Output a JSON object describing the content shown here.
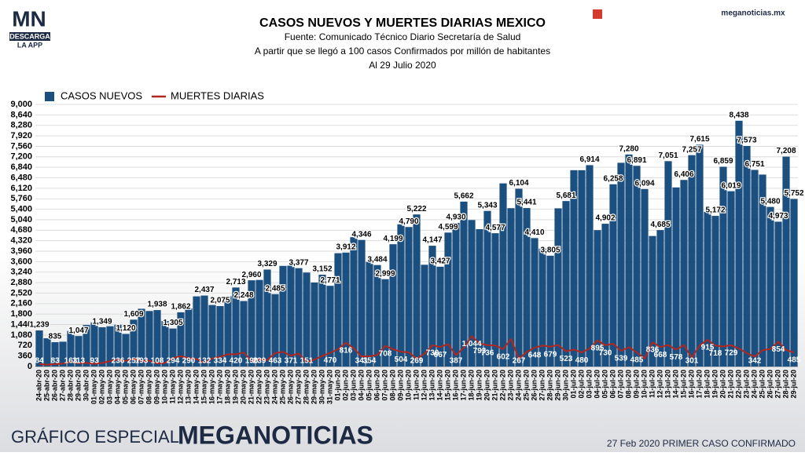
{
  "logo": {
    "mark": "MN",
    "line1": "DESCARGA",
    "line2": "LA APP"
  },
  "site": "meganoticias.mx",
  "footer": {
    "left": "GRÁFICO ESPECIAL",
    "brand": "MEGANOTICIAS",
    "right": "27 Feb 2020 PRIMER CASO CONFIRMADO"
  },
  "chart_data": {
    "type": "bar",
    "title": "CASOS NUEVOS Y MUERTES DIARIAS MEXICO",
    "subtitle": [
      "Fuente: Comunicado Técnico Diario Secretaría de Salud",
      "A partir que se llegó a 100 casos Confirmados por millón de habitantes",
      "Al 29 Julio 2020"
    ],
    "legend": "top-left",
    "grid": true,
    "ylim": [
      0,
      9000
    ],
    "yticks": [
      0,
      360,
      720,
      {
        "value": 1080,
        "label": "1,080"
      },
      {
        "value": 1440,
        "label": "1,440"
      },
      {
        "value": 1800,
        "label": "1,800"
      },
      {
        "value": 2160,
        "label": "2,160"
      },
      {
        "value": 2520,
        "label": "2,520"
      },
      {
        "value": 2880,
        "label": "2,880"
      },
      {
        "value": 3240,
        "label": "3,240"
      },
      {
        "value": 3600,
        "label": "3,600"
      },
      {
        "value": 3960,
        "label": "3,960"
      },
      {
        "value": 4320,
        "label": "4,320"
      },
      {
        "value": 4680,
        "label": "4,680"
      },
      {
        "value": 5040,
        "label": "5,040"
      },
      {
        "value": 5400,
        "label": "5,400"
      },
      {
        "value": 5760,
        "label": "5,760"
      },
      {
        "value": 6120,
        "label": "6,120"
      },
      {
        "value": 6480,
        "label": "6,480"
      },
      {
        "value": 6840,
        "label": "6,840"
      },
      {
        "value": 7200,
        "label": "7,200"
      },
      {
        "value": 7560,
        "label": "7,560"
      },
      {
        "value": 7920,
        "label": "7,920"
      },
      {
        "value": 8280,
        "label": "8,280"
      },
      {
        "value": 8640,
        "label": "8,640"
      },
      {
        "value": 9000,
        "label": "9,000"
      }
    ],
    "categories": [
      "24-abr-20",
      "25-abr-20",
      "26-abr-20",
      "27-abr-20",
      "28-abr-20",
      "29-abr-20",
      "30-abr-20",
      "01-may-20",
      "02-may-20",
      "03-may-20",
      "04-may-20",
      "05-may-20",
      "06-may-20",
      "07-may-20",
      "08-may-20",
      "09-may-20",
      "10-may-20",
      "11-may-20",
      "12-may-20",
      "13-may-20",
      "14-may-20",
      "15-may-20",
      "16-may-20",
      "17-may-20",
      "18-may-20",
      "19-may-20",
      "20-may-20",
      "21-may-20",
      "22-may-20",
      "23-may-20",
      "24-may-20",
      "25-may-20",
      "26-may-20",
      "27-may-20",
      "28-may-20",
      "29-may-20",
      "30-may-20",
      "31-may-20",
      "01-jun-20",
      "02-jun-20",
      "03-jun-20",
      "04-jun-20",
      "05-jun-20",
      "06-jun-20",
      "07-jun-20",
      "08-jun-20",
      "09-jun-20",
      "10-jun-20",
      "11-jun-20",
      "12-jun-20",
      "13-jun-20",
      "14-jun-20",
      "15-jun-20",
      "16-jun-20",
      "17-jun-20",
      "18-jun-20",
      "19-jun-20",
      "20-jun-20",
      "21-jun-20",
      "22-jun-20",
      "23-jun-20",
      "24-jun-20",
      "25-jun-20",
      "26-jun-20",
      "27-jun-20",
      "28-jun-20",
      "29-jun-20",
      "30-jun-20",
      "01-jul-20",
      "02-jul-20",
      "03-jul-20",
      "04-jul-20",
      "05-jul-20",
      "06-jul-20",
      "07-jul-20",
      "08-jul-20",
      "09-jul-20",
      "10-jul-20",
      "11-jul-20",
      "12-jul-20",
      "13-jul-20",
      "14-jul-20",
      "15-jul-20",
      "16-jul-20",
      "17-jul-20",
      "18-jul-20",
      "19-jul-20",
      "20-jul-20",
      "21-jul-20",
      "22-jul-20",
      "23-jul-20",
      "24-jul-20",
      "25-jul-20",
      "26-jul-20",
      "27-jul-20",
      "28-jul-20",
      "29-jul-20"
    ],
    "series": [
      {
        "name": "CASOS NUEVOS",
        "type": "bar",
        "color": "#1b4f80",
        "values": [
          1239,
          970,
          835,
          852,
          1223,
          1047,
          1425,
          1515,
          1349,
          1383,
          1434,
          1120,
          1609,
          1982,
          1906,
          1938,
          1562,
          1305,
          1862,
          1997,
          2409,
          2437,
          2112,
          2075,
          2414,
          2713,
          2248,
          2960,
          2973,
          3329,
          2485,
          3455,
          3463,
          3377,
          3227,
          2885,
          3152,
          2771,
          3891,
          3912,
          4442,
          4346,
          3593,
          3484,
          2999,
          4199,
          4883,
          4790,
          5222,
          3494,
          4147,
          3427,
          4599,
          4930,
          5662,
          5030,
          4717,
          5343,
          4577,
          6288,
          5437,
          6104,
          5441,
          4410,
          4050,
          3805,
          5432,
          5681,
          6741,
          6740,
          6914,
          4683,
          4902,
          6258,
          6995,
          7280,
          6891,
          6094,
          4482,
          4685,
          7051,
          6149,
          6406,
          7257,
          7615,
          5311,
          5172,
          6859,
          6019,
          8438,
          7573,
          6751,
          6590,
          5480,
          4973,
          7208,
          5752
        ],
        "value_labels": [
          "1,239",
          null,
          "835",
          null,
          null,
          "1,047",
          null,
          null,
          "1,349",
          null,
          null,
          "1,120",
          "1,609",
          null,
          null,
          "1,938",
          null,
          "1,305",
          "1,862",
          null,
          null,
          "2,437",
          null,
          "2,075",
          null,
          "2,713",
          "2,248",
          "2,960",
          null,
          "3,329",
          "2,485",
          null,
          null,
          "3,377",
          null,
          null,
          "3,152",
          "2,771",
          null,
          "3,912",
          null,
          "4,346",
          null,
          "3,484",
          "2,999",
          "4,199",
          null,
          "4,790",
          "5,222",
          null,
          "4,147",
          "3,427",
          "4,599",
          "4,930",
          "5,662",
          null,
          null,
          "5,343",
          "4,577",
          null,
          null,
          "6,104",
          "5,441",
          "4,410",
          null,
          "3,805",
          null,
          "5,681",
          null,
          null,
          "6,914",
          null,
          "4,902",
          "6,258",
          null,
          "7,280",
          "6,891",
          "6,094",
          null,
          "4,685",
          "7,051",
          null,
          "6,406",
          "7,257",
          "7,615",
          null,
          "5,172",
          "6,859",
          "6,019",
          "8,438",
          "7,573",
          "6,751",
          null,
          "5,480",
          "4,973",
          "7,208",
          "5,752"
        ]
      },
      {
        "name": "MUERTES DIARIAS",
        "type": "line",
        "color": "#b3261e",
        "values": [
          84,
          60,
          83,
          103,
          163,
          113,
          125,
          93,
          121,
          186,
          236,
          197,
          257,
          193,
          199,
          108,
          122,
          294,
          353,
          290,
          257,
          132,
          278,
          334,
          424,
          420,
          479,
          190,
          239,
          221,
          463,
          501,
          371,
          447,
          151,
          237,
          364,
          470,
          593,
          816,
          625,
          341,
          354,
          400,
          708,
          596,
          504,
          488,
          269,
          439,
          730,
          667,
          770,
          387,
          647,
          1044,
          793,
          736,
          719,
          602,
          947,
          267,
          500,
          648,
          719,
          679,
          741,
          523,
          585,
          480,
          620,
          895,
          730,
          782,
          539,
          665,
          485,
          276,
          836,
          668,
          737,
          578,
          736,
          301,
          725,
          915,
          718,
          690,
          729,
          617,
          460,
          342,
          563,
          601,
          854,
          564,
          485
        ],
        "value_labels": [
          "84",
          null,
          "83",
          null,
          "163",
          "113",
          null,
          "93",
          null,
          null,
          "236",
          null,
          "257",
          "193",
          null,
          "108",
          null,
          "294",
          null,
          "290",
          null,
          "132",
          null,
          "334",
          null,
          "420",
          null,
          "190",
          "239",
          null,
          "463",
          null,
          "371",
          null,
          "151",
          null,
          null,
          "470",
          null,
          "816",
          null,
          "341",
          "354",
          null,
          "708",
          null,
          "504",
          null,
          "269",
          null,
          "730",
          "667",
          null,
          "387",
          null,
          "1,044",
          "793",
          "736",
          null,
          "602",
          null,
          "267",
          null,
          "648",
          null,
          "679",
          null,
          "523",
          null,
          "480",
          null,
          "895",
          "730",
          null,
          "539",
          null,
          "485",
          null,
          "836",
          "668",
          null,
          "578",
          null,
          "301",
          null,
          "915",
          "718",
          null,
          "729",
          null,
          null,
          "342",
          null,
          null,
          "854",
          null,
          "485"
        ]
      }
    ]
  }
}
